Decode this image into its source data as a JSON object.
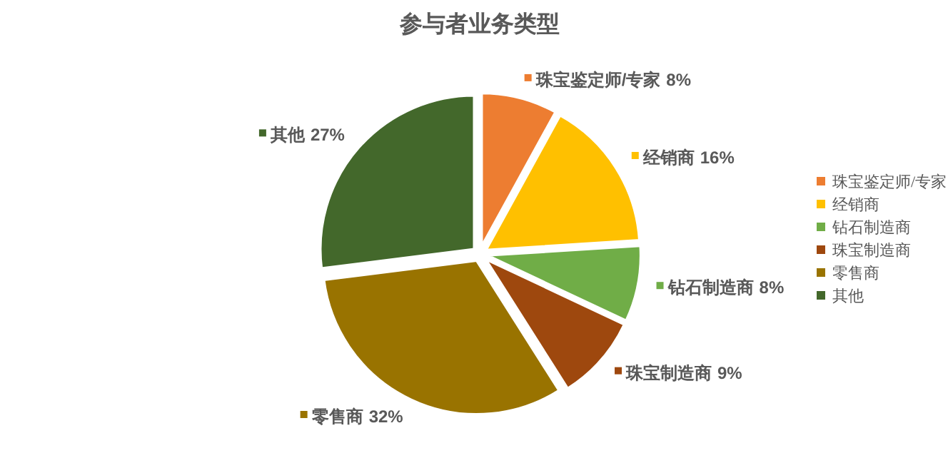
{
  "chart_data": {
    "type": "pie",
    "title": "参与者业务类型",
    "categories": [
      "珠宝鉴定师/专家",
      "经销商",
      "钻石制造商",
      "珠宝制造商",
      "零售商",
      "其他"
    ],
    "values": [
      8,
      16,
      8,
      9,
      32,
      27
    ],
    "colors": [
      "#ed7d31",
      "#ffc000",
      "#70ad47",
      "#9e480e",
      "#997300",
      "#43682b"
    ],
    "value_labels": [
      "8%",
      "16%",
      "8%",
      "9%",
      "32%",
      "27%"
    ],
    "legend": "right"
  }
}
